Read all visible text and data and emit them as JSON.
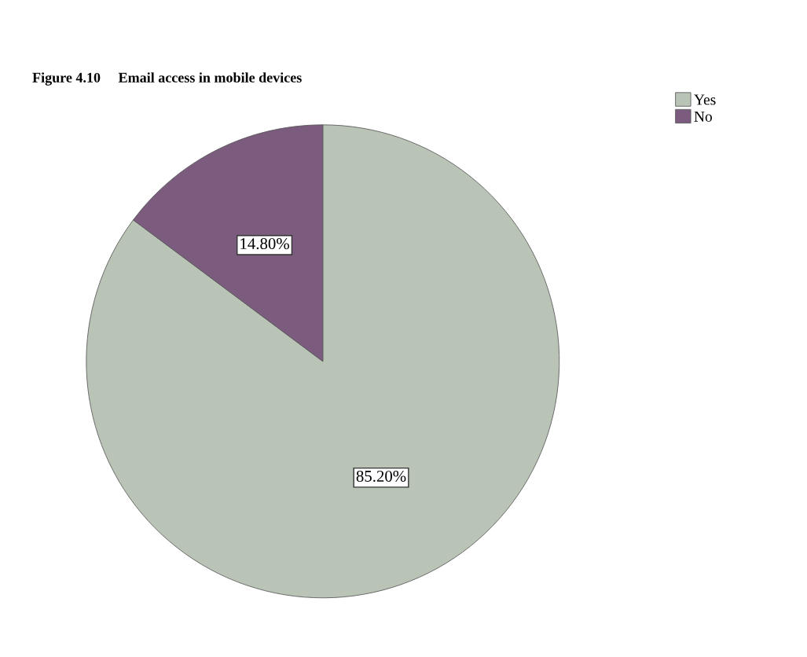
{
  "chart_data": {
    "type": "pie",
    "title": "Figure 4.10     Email access in mobile devices",
    "categories": [
      "Yes",
      "No"
    ],
    "values": [
      85.2,
      14.8
    ],
    "colors": [
      "#b9c3b6",
      "#7b5b7e"
    ],
    "value_labels": [
      "85.20%",
      "14.80%"
    ],
    "legend": "top right"
  }
}
